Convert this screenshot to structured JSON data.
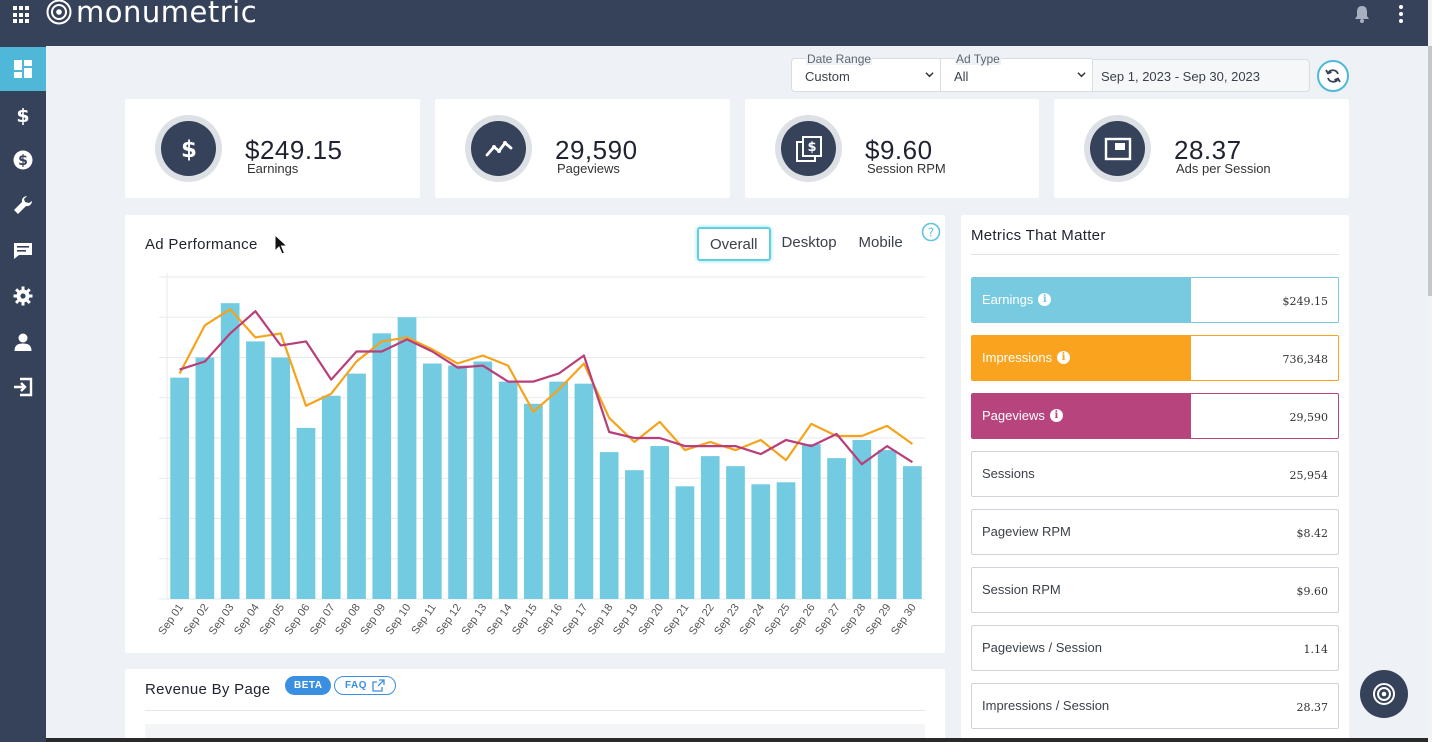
{
  "app": {
    "logo_text": "monumetric"
  },
  "filters": {
    "date_range": {
      "label": "Date Range",
      "value": "Custom"
    },
    "ad_type": {
      "label": "Ad Type",
      "value": "All"
    },
    "dates": "Sep 1, 2023 - Sep 30, 2023"
  },
  "stats": [
    {
      "value": "$249.15",
      "label": "Earnings",
      "icon": "dollar-icon"
    },
    {
      "value": "29,590",
      "label": "Pageviews",
      "icon": "trend-icon"
    },
    {
      "value": "$9.60",
      "label": "Session RPM",
      "icon": "pages-dollar-icon"
    },
    {
      "value": "28.37",
      "label": "Ads per Session",
      "icon": "window-icon"
    }
  ],
  "ad_performance": {
    "title": "Ad Performance",
    "tabs": [
      "Overall",
      "Desktop",
      "Mobile"
    ],
    "active_tab": "Overall"
  },
  "chart_data": {
    "type": "bar",
    "categories": [
      "Sep 01",
      "Sep 02",
      "Sep 03",
      "Sep 04",
      "Sep 05",
      "Sep 06",
      "Sep 07",
      "Sep 08",
      "Sep 09",
      "Sep 10",
      "Sep 11",
      "Sep 12",
      "Sep 13",
      "Sep 14",
      "Sep 15",
      "Sep 16",
      "Sep 17",
      "Sep 18",
      "Sep 19",
      "Sep 20",
      "Sep 21",
      "Sep 22",
      "Sep 23",
      "Sep 24",
      "Sep 25",
      "Sep 26",
      "Sep 27",
      "Sep 28",
      "Sep 29",
      "Sep 30"
    ],
    "series": [
      {
        "kind": "bar",
        "color": "#72cbe0",
        "values": [
          5.5,
          6.0,
          7.35,
          6.4,
          6.0,
          4.25,
          5.05,
          5.6,
          6.6,
          7.0,
          5.85,
          5.8,
          5.9,
          5.4,
          4.85,
          5.4,
          5.35,
          3.65,
          3.2,
          3.8,
          2.8,
          3.55,
          3.3,
          2.85,
          2.9,
          3.85,
          3.5,
          3.95,
          3.7,
          3.3
        ]
      },
      {
        "kind": "line",
        "color": "#f5a31c",
        "values": [
          5.6,
          6.8,
          7.2,
          6.5,
          6.6,
          4.8,
          5.1,
          5.9,
          6.4,
          6.5,
          6.2,
          5.85,
          6.05,
          5.8,
          4.65,
          5.2,
          5.85,
          4.5,
          3.9,
          4.4,
          3.7,
          3.9,
          3.7,
          3.95,
          3.45,
          4.35,
          4.05,
          4.05,
          4.3,
          3.85
        ]
      },
      {
        "kind": "line",
        "color": "#b83f7a",
        "values": [
          5.7,
          5.9,
          6.6,
          7.15,
          6.3,
          6.4,
          5.45,
          6.15,
          6.15,
          6.45,
          6.15,
          5.75,
          5.8,
          5.4,
          5.4,
          5.6,
          6.05,
          4.15,
          4.0,
          4.0,
          3.8,
          3.8,
          3.8,
          3.6,
          3.95,
          3.8,
          4.1,
          3.35,
          3.8,
          3.4
        ]
      }
    ],
    "ylim": [
      0,
      8
    ],
    "grid": true
  },
  "metrics_panel": {
    "title": "Metrics That Matter",
    "items": [
      {
        "label": "Earnings",
        "value": "$249.15",
        "color": "#78cae0",
        "info": true
      },
      {
        "label": "Impressions",
        "value": "736,348",
        "color": "#f9a31e",
        "info": true
      },
      {
        "label": "Pageviews",
        "value": "29,590",
        "color": "#b8447e",
        "info": true
      },
      {
        "label": "Sessions",
        "value": "25,954"
      },
      {
        "label": "Pageview RPM",
        "value": "$8.42"
      },
      {
        "label": "Session RPM",
        "value": "$9.60"
      },
      {
        "label": "Pageviews / Session",
        "value": "1.14"
      },
      {
        "label": "Impressions / Session",
        "value": "28.37"
      }
    ]
  },
  "revenue_by_page": {
    "title": "Revenue By Page",
    "beta": "BETA",
    "faq": "FAQ"
  }
}
